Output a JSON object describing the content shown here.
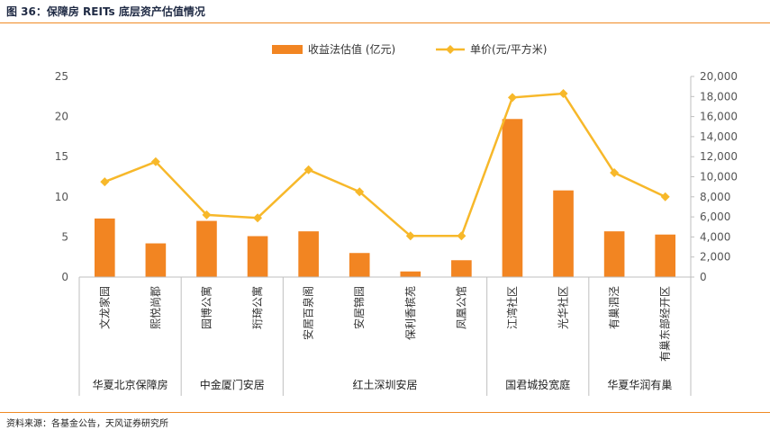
{
  "title": "图 36：保障房 REITs 底层资产估值情况",
  "source": "资料来源：各基金公告，天风证券研究所",
  "chart_data": {
    "type": "bar+line",
    "categories": [
      "文龙家园",
      "熙悦尚郡",
      "园博公寓",
      "珩琦公寓",
      "安居百泉阁",
      "安居锦园",
      "保利香槟苑",
      "凤凰公馆",
      "江湾社区",
      "光华社区",
      "有巢泗泾",
      "有巢东部经开区"
    ],
    "groups": [
      {
        "name": "华夏北京保障房",
        "start": 0,
        "end": 1
      },
      {
        "name": "中金厦门安居",
        "start": 2,
        "end": 3
      },
      {
        "name": "红土深圳安居",
        "start": 4,
        "end": 7
      },
      {
        "name": "国君城投宽庭",
        "start": 8,
        "end": 9
      },
      {
        "name": "华夏华润有巢",
        "start": 10,
        "end": 11
      }
    ],
    "series": [
      {
        "name": "收益法估值 (亿元)",
        "type": "bar",
        "axis": "left",
        "color": "#f28522",
        "values": [
          7.3,
          4.2,
          7.0,
          5.1,
          5.7,
          3.0,
          0.7,
          2.1,
          19.7,
          10.8,
          5.7,
          5.3
        ]
      },
      {
        "name": "单价(元/平方米)",
        "type": "line",
        "axis": "right",
        "color": "#f7b82a",
        "values": [
          9500,
          11500,
          6200,
          5900,
          10700,
          8500,
          4100,
          4100,
          17900,
          18300,
          10400,
          8000
        ]
      }
    ],
    "y_left": {
      "min": 0,
      "max": 25,
      "ticks": [
        "0",
        "5",
        "10",
        "15",
        "20",
        "25"
      ]
    },
    "y_right": {
      "min": 0,
      "max": 20000,
      "ticks": [
        "0",
        "2,000",
        "4,000",
        "6,000",
        "8,000",
        "10,000",
        "12,000",
        "14,000",
        "16,000",
        "18,000",
        "20,000"
      ]
    },
    "legend_position": "top-center",
    "grid": false
  }
}
